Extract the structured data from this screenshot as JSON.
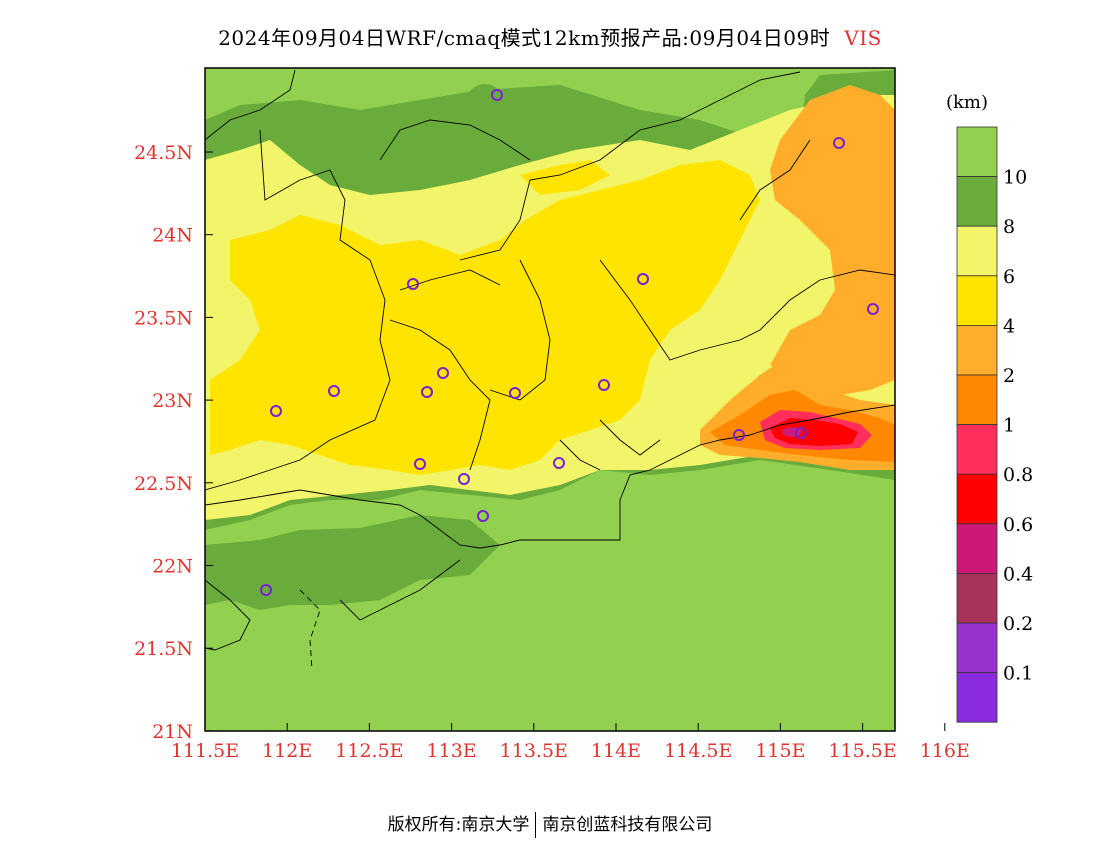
{
  "title": "2024年09月04日WRF/cmaq模式12km预报产品:09月04日09时",
  "variable": "VIS",
  "colors": {
    "axis_label": "#e0342f",
    "variable": "#e0342f",
    "city_marker": "#7a1fd6"
  },
  "map": {
    "lon_labels": [
      "111.5E",
      "112E",
      "112.5E",
      "113E",
      "113.5E",
      "114E",
      "114.5E",
      "115E",
      "115.5E",
      "116E"
    ],
    "lat_labels": [
      "24.5N",
      "24N",
      "23.5N",
      "23N",
      "22.5N",
      "22N",
      "21.5N",
      "21N"
    ]
  },
  "legend": {
    "unit": "(km)",
    "levels": [
      {
        "label": "10",
        "color": "#92d050"
      },
      {
        "label": "8",
        "color": "#6aac3c"
      },
      {
        "label": "6",
        "color": "#f2f56a"
      },
      {
        "label": "4",
        "color": "#ffe400"
      },
      {
        "label": "2",
        "color": "#ffad2a"
      },
      {
        "label": "1",
        "color": "#ff8800"
      },
      {
        "label": "0.8",
        "color": "#ff2e5a"
      },
      {
        "label": "0.6",
        "color": "#ff0000"
      },
      {
        "label": "0.4",
        "color": "#cc1877"
      },
      {
        "label": "0.2",
        "color": "#a8325a"
      },
      {
        "label": "0.1",
        "color": "#9932cc"
      },
      {
        "label": "",
        "color": "#8a2be2"
      }
    ]
  },
  "footer": {
    "left": "版权所有:南京大学",
    "right": "南京创蓝科技有限公司"
  }
}
